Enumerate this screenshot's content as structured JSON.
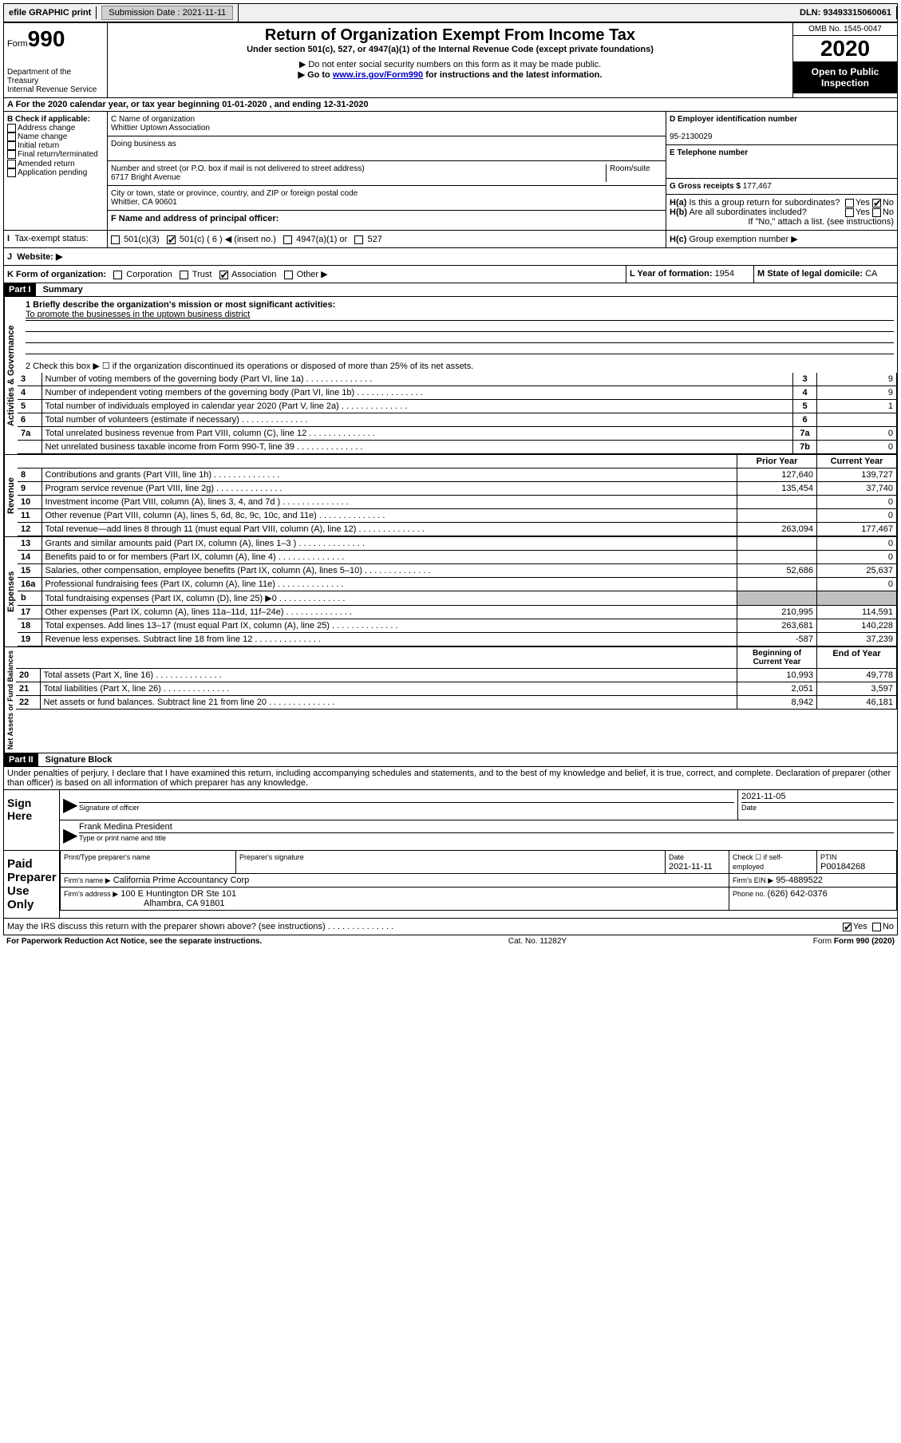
{
  "topbar": {
    "efile": "efile GRAPHIC print",
    "submission_label": "Submission Date : ",
    "submission_date": "2021-11-11",
    "dln_label": "DLN: ",
    "dln": "93493315060061"
  },
  "header": {
    "form_label": "Form",
    "form_num": "990",
    "dept": "Department of the Treasury\nInternal Revenue Service",
    "title": "Return of Organization Exempt From Income Tax",
    "sub1": "Under section 501(c), 527, or 4947(a)(1) of the Internal Revenue Code (except private foundations)",
    "sub2": "▶ Do not enter social security numbers on this form as it may be made public.",
    "sub3_pre": "▶ Go to ",
    "sub3_link": "www.irs.gov/Form990",
    "sub3_post": " for instructions and the latest information.",
    "omb": "OMB No. 1545-0047",
    "year": "2020",
    "inspect": "Open to Public Inspection"
  },
  "section_a": "A For the 2020 calendar year, or tax year beginning 01-01-2020    , and ending 12-31-2020",
  "b": {
    "label": "B Check if applicable:",
    "items": [
      "Address change",
      "Name change",
      "Initial return",
      "Final return/terminated",
      "Amended return",
      "Application pending"
    ]
  },
  "c": {
    "name_label": "C Name of organization",
    "name": "Whittier Uptown Association",
    "dba_label": "Doing business as",
    "street_label": "Number and street (or P.O. box if mail is not delivered to street address)",
    "room_label": "Room/suite",
    "street": "6717 Bright Avenue",
    "city_label": "City or town, state or province, country, and ZIP or foreign postal code",
    "city": "Whittier, CA  90601",
    "officer_label": "F Name and address of principal officer:"
  },
  "d": {
    "ein_label": "D Employer identification number",
    "ein": "95-2130029",
    "phone_label": "E Telephone number",
    "gross_label": "G Gross receipts $ ",
    "gross": "177,467"
  },
  "h": {
    "a_label": "H(a)",
    "a_text": "Is this a group return for subordinates?",
    "b_label": "H(b)",
    "b_text": "Are all subordinates included?",
    "note": "If \"No,\" attach a list. (see instructions)",
    "c_label": "H(c)",
    "c_text": "Group exemption number ▶",
    "yes": "Yes",
    "no": "No"
  },
  "i": {
    "label": "I",
    "text": "Tax-exempt status:",
    "opts": [
      "501(c)(3)",
      "501(c) ( 6 ) ◀ (insert no.)",
      "4947(a)(1) or",
      "527"
    ]
  },
  "j": {
    "label": "J",
    "text": "Website: ▶"
  },
  "k": {
    "label": "K Form of organization:",
    "opts": [
      "Corporation",
      "Trust",
      "Association",
      "Other ▶"
    ],
    "l_label": "L Year of formation: ",
    "l_val": "1954",
    "m_label": "M State of legal domicile: ",
    "m_val": "CA"
  },
  "part1": {
    "header": "Part I",
    "title": "Summary",
    "q1": "1  Briefly describe the organization's mission or most significant activities:",
    "mission": "To promote the businesses in the uptown business district",
    "q2": "2   Check this box ▶ ☐  if the organization discontinued its operations or disposed of more than 25% of its net assets.",
    "sections": {
      "gov": "Activities & Governance",
      "rev": "Revenue",
      "exp": "Expenses",
      "net": "Net Assets or Fund Balances"
    },
    "rows_gov": [
      {
        "n": "3",
        "t": "Number of voting members of the governing body (Part VI, line 1a)",
        "l": "3",
        "v": "9"
      },
      {
        "n": "4",
        "t": "Number of independent voting members of the governing body (Part VI, line 1b)",
        "l": "4",
        "v": "9"
      },
      {
        "n": "5",
        "t": "Total number of individuals employed in calendar year 2020 (Part V, line 2a)",
        "l": "5",
        "v": "1"
      },
      {
        "n": "6",
        "t": "Total number of volunteers (estimate if necessary)",
        "l": "6",
        "v": ""
      },
      {
        "n": "7a",
        "t": "Total unrelated business revenue from Part VIII, column (C), line 12",
        "l": "7a",
        "v": "0"
      },
      {
        "n": "",
        "t": "Net unrelated business taxable income from Form 990-T, line 39",
        "l": "7b",
        "v": "0"
      }
    ],
    "col_headers": {
      "b": "b",
      "prior": "Prior Year",
      "current": "Current Year",
      "begin": "Beginning of Current Year",
      "end": "End of Year"
    },
    "rows_rev": [
      {
        "n": "8",
        "t": "Contributions and grants (Part VIII, line 1h)",
        "p": "127,640",
        "c": "139,727"
      },
      {
        "n": "9",
        "t": "Program service revenue (Part VIII, line 2g)",
        "p": "135,454",
        "c": "37,740"
      },
      {
        "n": "10",
        "t": "Investment income (Part VIII, column (A), lines 3, 4, and 7d )",
        "p": "",
        "c": "0"
      },
      {
        "n": "11",
        "t": "Other revenue (Part VIII, column (A), lines 5, 6d, 8c, 9c, 10c, and 11e)",
        "p": "",
        "c": "0"
      },
      {
        "n": "12",
        "t": "Total revenue—add lines 8 through 11 (must equal Part VIII, column (A), line 12)",
        "p": "263,094",
        "c": "177,467"
      }
    ],
    "rows_exp": [
      {
        "n": "13",
        "t": "Grants and similar amounts paid (Part IX, column (A), lines 1–3 )",
        "p": "",
        "c": "0"
      },
      {
        "n": "14",
        "t": "Benefits paid to or for members (Part IX, column (A), line 4)",
        "p": "",
        "c": "0"
      },
      {
        "n": "15",
        "t": "Salaries, other compensation, employee benefits (Part IX, column (A), lines 5–10)",
        "p": "52,686",
        "c": "25,637"
      },
      {
        "n": "16a",
        "t": "Professional fundraising fees (Part IX, column (A), line 11e)",
        "p": "",
        "c": "0"
      },
      {
        "n": "b",
        "t": "Total fundraising expenses (Part IX, column (D), line 25) ▶0",
        "p": "shade",
        "c": "shade"
      },
      {
        "n": "17",
        "t": "Other expenses (Part IX, column (A), lines 11a–11d, 11f–24e)",
        "p": "210,995",
        "c": "114,591"
      },
      {
        "n": "18",
        "t": "Total expenses. Add lines 13–17 (must equal Part IX, column (A), line 25)",
        "p": "263,681",
        "c": "140,228"
      },
      {
        "n": "19",
        "t": "Revenue less expenses. Subtract line 18 from line 12",
        "p": "-587",
        "c": "37,239"
      }
    ],
    "rows_net": [
      {
        "n": "20",
        "t": "Total assets (Part X, line 16)",
        "p": "10,993",
        "c": "49,778"
      },
      {
        "n": "21",
        "t": "Total liabilities (Part X, line 26)",
        "p": "2,051",
        "c": "3,597"
      },
      {
        "n": "22",
        "t": "Net assets or fund balances. Subtract line 21 from line 20",
        "p": "8,942",
        "c": "46,181"
      }
    ]
  },
  "part2": {
    "header": "Part II",
    "title": "Signature Block",
    "decl": "Under penalties of perjury, I declare that I have examined this return, including accompanying schedules and statements, and to the best of my knowledge and belief, it is true, correct, and complete. Declaration of preparer (other than officer) is based on all information of which preparer has any knowledge.",
    "sign_here": "Sign Here",
    "sig_officer": "Signature of officer",
    "sig_date_label": "Date",
    "sig_date": "2021-11-05",
    "sig_name": "Frank Medina  President",
    "sig_name_label": "Type or print name and title",
    "paid": "Paid Preparer Use Only",
    "prep_name_label": "Print/Type preparer's name",
    "prep_sig_label": "Preparer's signature",
    "prep_date_label": "Date",
    "prep_date": "2021-11-11",
    "self_emp": "Check ☐ if self-employed",
    "ptin_label": "PTIN",
    "ptin": "P00184268",
    "firm_name_label": "Firm's name     ▶",
    "firm_name": "California Prime Accountancy Corp",
    "firm_ein_label": "Firm's EIN ▶",
    "firm_ein": "95-4889522",
    "firm_addr_label": "Firm's address ▶",
    "firm_addr1": "100 E Huntington DR Ste 101",
    "firm_addr2": "Alhambra, CA  91801",
    "firm_phone_label": "Phone no. ",
    "firm_phone": "(626) 642-0376",
    "discuss": "May the IRS discuss this return with the preparer shown above? (see instructions)"
  },
  "footer": {
    "left": "For Paperwork Reduction Act Notice, see the separate instructions.",
    "mid": "Cat. No. 11282Y",
    "right": "Form 990 (2020)"
  }
}
